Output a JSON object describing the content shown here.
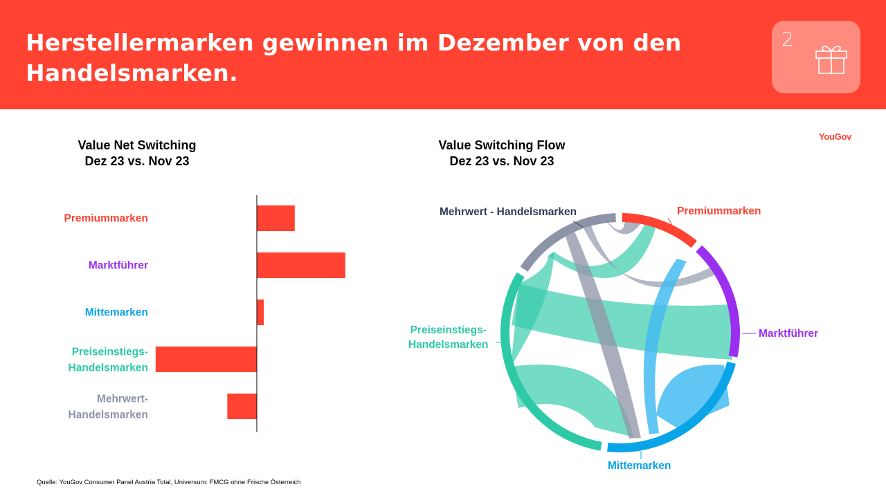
{
  "header": {
    "title": "Herstellermarken gewinnen im Dezember von den Handelsmarken.",
    "page_number": "2"
  },
  "logo_text": "YouGov",
  "source": "Quelle: YouGov Consumer Panel Austria Total, Universum: FMCG ohne Frische Österreich",
  "icons": {
    "badge": "gift-icon"
  },
  "colors": {
    "header_bg": "#ff4231",
    "bar": "#ff4231",
    "premium": "#ff4231",
    "marktfuehrer": "#9b2ff0",
    "mitte": "#0aa4e8",
    "preiseinstieg": "#2ec9a6",
    "mehrwert": "#8d94a8"
  },
  "chart_data": [
    {
      "type": "bar",
      "orientation": "horizontal",
      "title": "Value Net Switching",
      "subtitle": "Dez 23 vs. Nov 23",
      "categories": [
        {
          "line1": "Premiummarken",
          "line2": ""
        },
        {
          "line1": "Marktführer",
          "line2": ""
        },
        {
          "line1": "Mittemarken",
          "line2": ""
        },
        {
          "line1": "Preiseinstiegs-",
          "line2": "Handelsmarken"
        },
        {
          "line1": "Mehrwert-",
          "line2": "Handelsmarken"
        }
      ],
      "category_colors": [
        "#ff4231",
        "#9b2ff0",
        "#0aa4e8",
        "#2ec9a6",
        "#8d94a8"
      ],
      "values": [
        0.54,
        1.26,
        0.1,
        -1.44,
        -0.42
      ],
      "xlim": [
        -1.5,
        1.5
      ],
      "value_axis_labels": false,
      "grid": false
    },
    {
      "type": "chord",
      "title": "Value Switching Flow",
      "subtitle": "Dez 23 vs. Nov 23",
      "nodes": [
        {
          "name": "Premiummarken",
          "color": "#ff4231",
          "share": 0.113
        },
        {
          "name": "Marktführer",
          "color": "#9b2ff0",
          "share": 0.171
        },
        {
          "name": "Mittemarken",
          "color": "#0aa4e8",
          "share": 0.236
        },
        {
          "name": "Preiseinstiegs-Handelsmarken",
          "color": "#2ec9a6",
          "share": 0.322
        },
        {
          "name": "Mehrwert - Handelsmarken",
          "color": "#8d94a8",
          "share": 0.158
        }
      ],
      "label_text": {
        "premium": "Premiummarken",
        "marktfuehrer": "Marktführer",
        "mitte": "Mittemarken",
        "preiseinstieg_line1": "Preiseinstiegs-",
        "preiseinstieg_line2": "Handelsmarken",
        "mehrwert": "Mehrwert - Handelsmarken"
      }
    }
  ]
}
